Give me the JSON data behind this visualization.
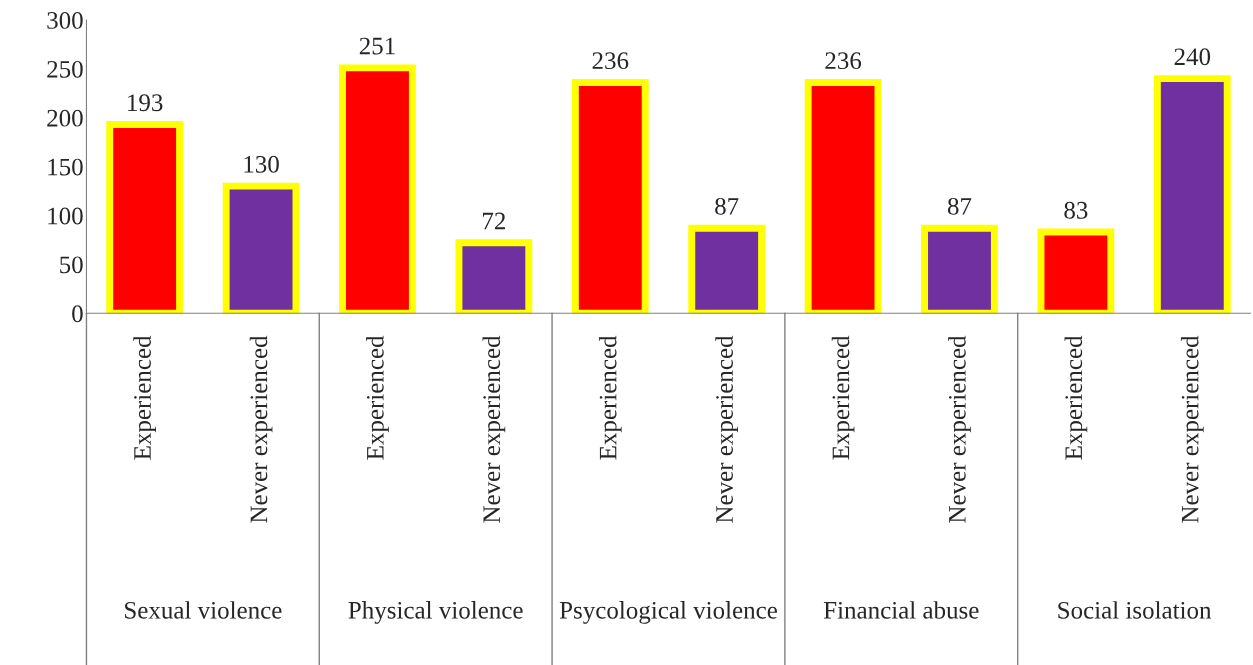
{
  "chart_data": {
    "type": "bar",
    "categories": [
      "Experienced",
      "Never experienced",
      "Experienced",
      "Never experienced",
      "Experienced",
      "Never experienced",
      "Experienced",
      "Never experienced",
      "Experienced",
      "Never experienced"
    ],
    "values": [
      193,
      130,
      251,
      72,
      236,
      87,
      236,
      87,
      83,
      240
    ],
    "colors": [
      "#ff0000",
      "#7030a0",
      "#ff0000",
      "#7030a0",
      "#ff0000",
      "#7030a0",
      "#ff0000",
      "#7030a0",
      "#ff0000",
      "#7030a0"
    ],
    "annotations": [
      "Sexual violence",
      "Physical violence",
      "Psycological violence",
      "Financial abuse",
      "Social isolation"
    ],
    "ylim": [
      0,
      300
    ],
    "yticks": [
      0,
      50,
      100,
      150,
      200,
      250,
      300
    ],
    "data_labels": true,
    "grid": false,
    "legend": false
  }
}
